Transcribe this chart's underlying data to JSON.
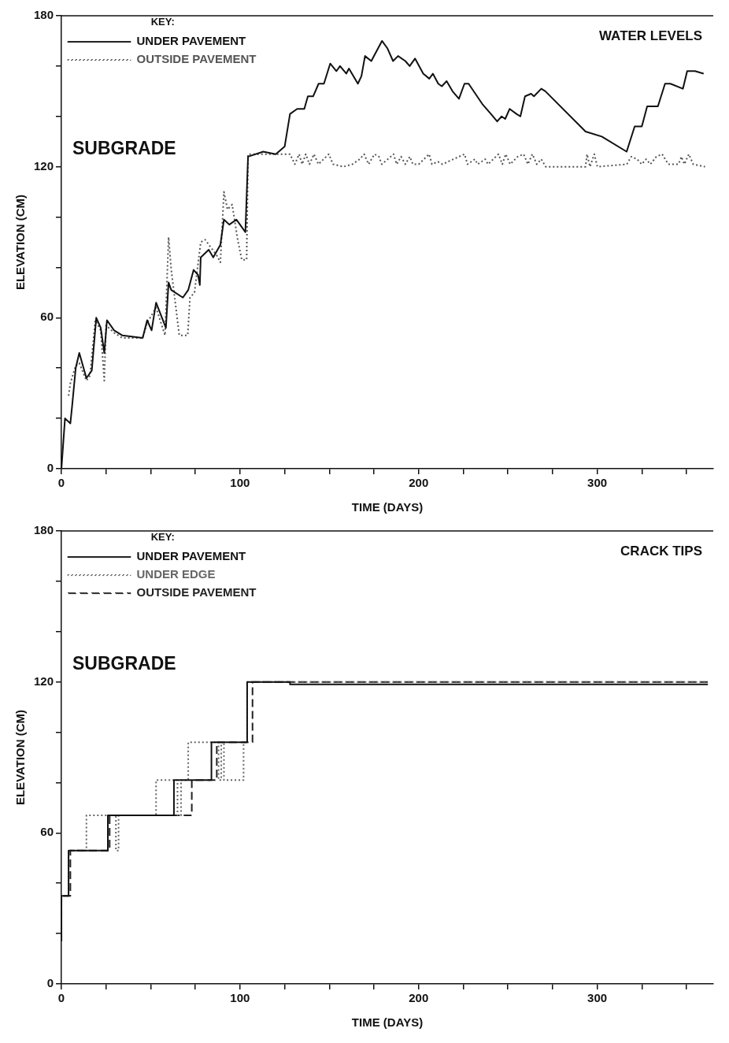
{
  "chart_data": [
    {
      "type": "line",
      "title": "WATER LEVELS",
      "xlabel": "TIME (DAYS)",
      "ylabel": "ELEVATION (CM)",
      "legend_title": "KEY:",
      "legend": "top left",
      "marker": "none",
      "annotations": [
        "SUBGRADE"
      ],
      "xlim": [
        0,
        365
      ],
      "ylim": [
        0,
        180
      ],
      "xticks": [
        0,
        {
          "value": 25,
          "label": null
        },
        {
          "value": 50,
          "label": null
        },
        {
          "value": 75,
          "label": null
        },
        100,
        {
          "value": 125,
          "label": null
        },
        {
          "value": 150,
          "label": null
        },
        {
          "value": 175,
          "label": null
        },
        200,
        {
          "value": 225,
          "label": null
        },
        {
          "value": 250,
          "label": null
        },
        {
          "value": 275,
          "label": null
        },
        300,
        {
          "value": 325,
          "label": null
        },
        {
          "value": 350,
          "label": null
        }
      ],
      "yticks": [
        0,
        {
          "value": 20,
          "label": null
        },
        {
          "value": 40,
          "label": null
        },
        60,
        {
          "value": 80,
          "label": null
        },
        {
          "value": 100,
          "label": null
        },
        120,
        {
          "value": 140,
          "label": null
        },
        {
          "value": 160,
          "label": null
        },
        180
      ],
      "series": [
        {
          "name": "UNDER PAVEMENT",
          "color": "#111111",
          "line_style": "solid",
          "x": [
            0,
            2,
            5,
            6,
            8,
            10,
            14,
            17,
            19.5,
            22,
            24,
            25.5,
            29.5,
            34,
            45.5,
            48,
            50.5,
            53,
            58.5,
            60,
            61.5,
            68,
            71,
            74,
            76.5,
            77.5,
            78,
            82.5,
            85,
            89,
            91,
            94,
            98,
            100,
            103,
            104.5,
            113,
            120,
            125,
            128,
            132,
            136,
            138,
            141,
            144,
            147,
            150.5,
            154,
            156,
            159.5,
            161,
            166,
            168,
            170,
            173.5,
            179.5,
            182.6,
            185.7,
            188.5,
            192.6,
            195,
            198,
            202.6,
            206,
            208,
            211,
            213,
            215.7,
            219,
            222.6,
            225.7,
            228,
            235.6,
            240.5,
            244,
            246.5,
            248.5,
            251,
            254.8,
            257,
            259.6,
            263,
            264.6,
            268.7,
            271,
            293.5,
            302.6,
            316.5,
            321,
            325,
            328,
            334,
            338,
            341,
            348,
            350.4,
            354.8,
            359.6
          ],
          "values": [
            0,
            20,
            18,
            25,
            40,
            46,
            36,
            39,
            60,
            56,
            46,
            59,
            55,
            53,
            52,
            59,
            55,
            66,
            56,
            74,
            71,
            68,
            71,
            79,
            77,
            73,
            84,
            87,
            84,
            89,
            99,
            97,
            99,
            97,
            94,
            124,
            126,
            125,
            128,
            141,
            143,
            143,
            148,
            148,
            153,
            153,
            161,
            158,
            160,
            157,
            159,
            153,
            156,
            164,
            162,
            170,
            167,
            162,
            164,
            162,
            160,
            163,
            157,
            155,
            157,
            153,
            152,
            154,
            150,
            147,
            153,
            153,
            145,
            141,
            138,
            140,
            139,
            143,
            141,
            140,
            148,
            149,
            148,
            151,
            150,
            134,
            132,
            126,
            136,
            136,
            144,
            144,
            153,
            153,
            151,
            158,
            158,
            157
          ]
        },
        {
          "name": "OUTSIDE PAVEMENT",
          "color": "#555555",
          "line_style": "dotted",
          "x": [
            4,
            5,
            8,
            10,
            14,
            16,
            19,
            22,
            24,
            25,
            29.5,
            34,
            45.5,
            48,
            53,
            58,
            60,
            61.5,
            66,
            70.7,
            72,
            74.5,
            78,
            80.5,
            83.6,
            86.8,
            89,
            91,
            93,
            95.6,
            98.7,
            101,
            103.7,
            104.5,
            109,
            128,
            130.7,
            133.1,
            134.8,
            136.8,
            138.9,
            141.4,
            143.9,
            149.7,
            152.1,
            157.9,
            162.9,
            167,
            169.5,
            172,
            175.3,
            177.8,
            179.4,
            186,
            187.7,
            190.2,
            192.6,
            195.1,
            196.8,
            200.1,
            205.9,
            207.5,
            210.8,
            213.3,
            225.7,
            227.4,
            231.5,
            233.1,
            237.3,
            238.9,
            244.7,
            246.9,
            248.8,
            251.3,
            255.5,
            258.8,
            261.2,
            263.7,
            266.2,
            268.7,
            271.2,
            293.5,
            294.3,
            296,
            298.4,
            300.1,
            316.6,
            319.1,
            322.4,
            324.9,
            327.4,
            329.8,
            333.1,
            336.4,
            339.8,
            345.5,
            347.2,
            348.8,
            351.3,
            353.8,
            360.4
          ],
          "values": [
            29,
            34,
            41,
            42,
            35,
            37,
            59,
            55,
            35,
            57,
            54,
            52,
            52,
            58,
            64,
            53,
            92,
            79,
            53,
            53,
            68,
            70,
            90,
            91,
            88,
            85,
            82,
            110,
            103,
            105,
            91,
            83,
            83,
            125,
            125,
            125,
            121,
            125,
            121,
            125,
            121,
            125,
            121,
            125,
            121,
            120,
            121,
            123,
            125,
            121,
            125,
            124,
            121,
            125,
            121,
            124,
            121,
            124,
            121,
            121,
            125,
            121,
            122,
            121,
            125,
            121,
            123,
            121,
            123,
            121,
            125,
            121,
            125,
            121,
            124,
            125,
            121,
            125,
            121,
            123,
            120,
            120,
            125,
            120,
            125,
            120,
            121,
            124,
            123,
            121,
            123,
            121,
            124,
            125,
            121,
            121,
            124,
            121,
            125,
            121,
            120
          ]
        }
      ]
    },
    {
      "type": "step",
      "title": "CRACK TIPS",
      "xlabel": "TIME (DAYS)",
      "ylabel": "ELEVATION (CM)",
      "legend_title": "KEY:",
      "legend": "top left",
      "marker": "none",
      "annotations": [
        "SUBGRADE"
      ],
      "xlim": [
        0,
        365
      ],
      "ylim": [
        0,
        180
      ],
      "xticks": [
        0,
        {
          "value": 25,
          "label": null
        },
        {
          "value": 50,
          "label": null
        },
        {
          "value": 75,
          "label": null
        },
        100,
        {
          "value": 125,
          "label": null
        },
        {
          "value": 150,
          "label": null
        },
        {
          "value": 175,
          "label": null
        },
        200,
        {
          "value": 225,
          "label": null
        },
        {
          "value": 250,
          "label": null
        },
        {
          "value": 275,
          "label": null
        },
        300,
        {
          "value": 325,
          "label": null
        },
        {
          "value": 350,
          "label": null
        }
      ],
      "yticks": [
        0,
        {
          "value": 20,
          "label": null
        },
        {
          "value": 40,
          "label": null
        },
        60,
        {
          "value": 80,
          "label": null
        },
        {
          "value": 100,
          "label": null
        },
        120,
        {
          "value": 140,
          "label": null
        },
        {
          "value": 160,
          "label": null
        },
        180
      ],
      "series": [
        {
          "name": "UNDER PAVEMENT",
          "color": "#111111",
          "line_style": "solid",
          "x": [
            0,
            4,
            26,
            63,
            84,
            104,
            128,
            362
          ],
          "values": [
            17,
            35,
            53,
            67,
            81,
            96,
            120,
            119
          ]
        },
        {
          "name": "UNDER EDGE",
          "color": "#666666",
          "line_style": "dotted",
          "x": [
            0,
            4,
            14,
            30.5,
            32,
            53,
            65,
            67,
            71,
            88,
            89.5,
            91,
            102,
            104,
            112,
            362
          ],
          "values": [
            17,
            35,
            53,
            67,
            53,
            67,
            81,
            67,
            81,
            96,
            81,
            96,
            81,
            96,
            120,
            120
          ]
        },
        {
          "name": "OUTSIDE PAVEMENT",
          "color": "#222222",
          "line_style": "dashed",
          "x": [
            0,
            5,
            27,
            73,
            87,
            107,
            128.6,
            362
          ],
          "values": [
            17,
            35,
            53,
            67,
            81,
            96,
            120,
            120
          ]
        }
      ]
    }
  ]
}
